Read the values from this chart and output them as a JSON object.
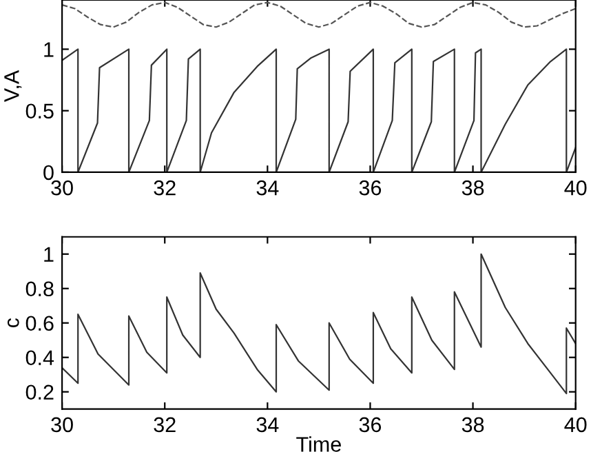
{
  "chart_data": [
    {
      "type": "line",
      "ylabel": "V,A",
      "xlim": [
        30,
        40
      ],
      "ylim": [
        0,
        1.4
      ],
      "xticks": [
        30,
        32,
        34,
        36,
        38,
        40
      ],
      "yticks": [
        0,
        0.5,
        1
      ],
      "grid": false,
      "series": [
        {
          "color": "#333333",
          "line_style": "solid",
          "x": [
            30,
            30.31,
            30.31,
            30.69,
            30.73,
            31.3,
            31.3,
            31.7,
            31.74,
            32.04,
            32.04,
            32.42,
            32.46,
            32.69,
            32.69,
            32.91,
            33.35,
            33.8,
            34.17,
            34.17,
            34.55,
            34.58,
            34.85,
            35.2,
            35.2,
            35.57,
            35.61,
            36.06,
            36.06,
            36.43,
            36.48,
            36.81,
            36.81,
            37.19,
            37.23,
            37.64,
            37.64,
            38.02,
            38.05,
            38.16,
            38.16,
            38.63,
            39.07,
            39.51,
            39.82,
            39.82,
            40
          ],
          "values": [
            0.91,
            1.0,
            0,
            0.4,
            0.85,
            1.0,
            0,
            0.42,
            0.87,
            1.0,
            0,
            0.42,
            0.92,
            1.0,
            0,
            0.32,
            0.65,
            0.86,
            1.0,
            0,
            0.43,
            0.84,
            0.93,
            1.0,
            0,
            0.41,
            0.82,
            1.0,
            0,
            0.42,
            0.89,
            1.0,
            0,
            0.41,
            0.9,
            1.0,
            0,
            0.42,
            0.97,
            1.0,
            0,
            0.39,
            0.71,
            0.9,
            1.0,
            0,
            0.2
          ]
        },
        {
          "color": "#555555",
          "line_style": "dashed",
          "x": [
            30,
            30.25,
            30.5,
            30.75,
            31,
            31.25,
            31.5,
            31.75,
            32,
            32.25,
            32.5,
            32.75,
            33,
            33.25,
            33.5,
            33.75,
            34,
            34.25,
            34.5,
            34.75,
            35,
            35.25,
            35.5,
            35.75,
            36,
            36.25,
            36.5,
            36.75,
            37,
            37.25,
            37.5,
            37.75,
            38,
            38.25,
            38.5,
            38.75,
            39,
            39.25,
            39.5,
            39.75,
            40
          ],
          "values": [
            1.36,
            1.33,
            1.26,
            1.2,
            1.18,
            1.22,
            1.3,
            1.36,
            1.38,
            1.34,
            1.27,
            1.2,
            1.18,
            1.22,
            1.29,
            1.36,
            1.38,
            1.35,
            1.28,
            1.21,
            1.18,
            1.21,
            1.28,
            1.35,
            1.38,
            1.35,
            1.29,
            1.21,
            1.18,
            1.2,
            1.27,
            1.34,
            1.38,
            1.36,
            1.3,
            1.22,
            1.18,
            1.19,
            1.24,
            1.29,
            1.33
          ]
        }
      ]
    },
    {
      "type": "line",
      "xlabel": "Time",
      "ylabel": "c",
      "xlim": [
        30,
        40
      ],
      "ylim": [
        0.1,
        1.1
      ],
      "xticks": [
        30,
        32,
        34,
        36,
        38,
        40
      ],
      "yticks": [
        0.2,
        0.4,
        0.6,
        0.8,
        1
      ],
      "grid": false,
      "series": [
        {
          "color": "#333333",
          "line_style": "solid",
          "x": [
            30,
            30.31,
            30.31,
            30.7,
            31.3,
            31.3,
            31.65,
            32.04,
            32.04,
            32.35,
            32.69,
            32.69,
            33.0,
            33.35,
            33.8,
            34.17,
            34.17,
            34.6,
            35.2,
            35.2,
            35.6,
            36.06,
            36.06,
            36.4,
            36.81,
            36.81,
            37.2,
            37.64,
            37.64,
            38.16,
            38.16,
            38.63,
            39.07,
            39.51,
            39.82,
            39.82,
            40
          ],
          "values": [
            0.34,
            0.25,
            0.65,
            0.42,
            0.24,
            0.64,
            0.43,
            0.31,
            0.75,
            0.53,
            0.4,
            0.89,
            0.68,
            0.54,
            0.33,
            0.2,
            0.59,
            0.38,
            0.21,
            0.6,
            0.39,
            0.25,
            0.66,
            0.45,
            0.31,
            0.75,
            0.5,
            0.33,
            0.78,
            0.46,
            1.0,
            0.69,
            0.48,
            0.31,
            0.19,
            0.57,
            0.48
          ]
        }
      ]
    }
  ]
}
